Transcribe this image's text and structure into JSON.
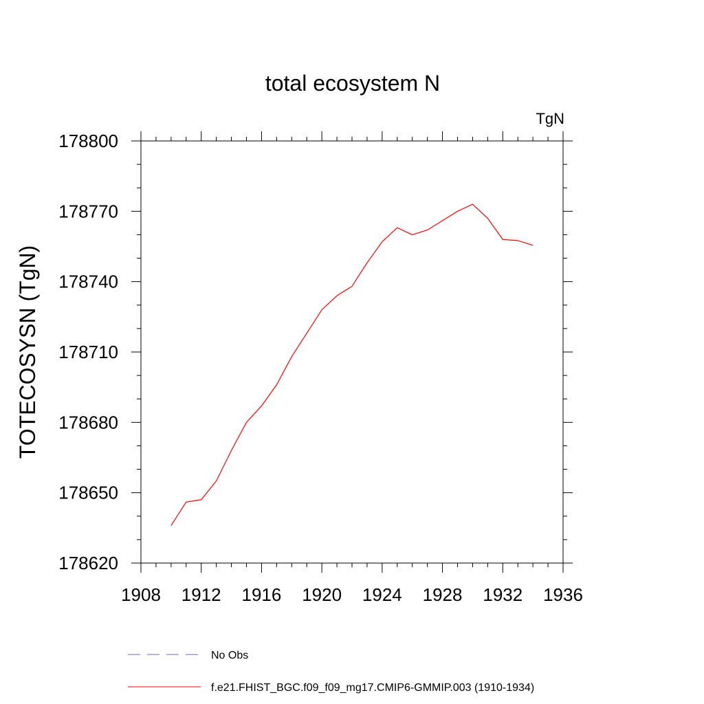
{
  "chart_data": {
    "type": "line",
    "title": "total ecosystem N",
    "units_label": "TgN",
    "xlabel": "",
    "ylabel": "TOTECOSYSN  (TgN)",
    "xlim": [
      1908,
      1936
    ],
    "ylim": [
      178620,
      178800
    ],
    "x_ticks": [
      1908,
      1912,
      1916,
      1920,
      1924,
      1928,
      1932,
      1936
    ],
    "y_ticks": [
      178620,
      178650,
      178680,
      178710,
      178740,
      178770,
      178800
    ],
    "grid": false,
    "legend_position": "bottom",
    "series": [
      {
        "name": "f.e21.FHIST_BGC.f09_f09_mg17.CMIP6-GMMIP.003 (1910-1934)",
        "color": "#ff0000",
        "style": "solid",
        "x": [
          1910,
          1911,
          1912,
          1913,
          1914,
          1915,
          1916,
          1917,
          1918,
          1919,
          1920,
          1921,
          1922,
          1923,
          1924,
          1925,
          1926,
          1927,
          1928,
          1929,
          1930,
          1931,
          1932,
          1933,
          1934
        ],
        "y": [
          178636,
          178646,
          178647,
          178655,
          178668,
          178680,
          178687,
          178696,
          178708,
          178718,
          178728,
          178734,
          178738,
          178748,
          178757,
          178763,
          178760,
          178762,
          178766,
          178770,
          178773,
          178767,
          178758,
          178757.5,
          178755.5
        ]
      },
      {
        "name": "No Obs",
        "color": "#6a6acd",
        "style": "dashed",
        "x": [],
        "y": []
      }
    ]
  }
}
